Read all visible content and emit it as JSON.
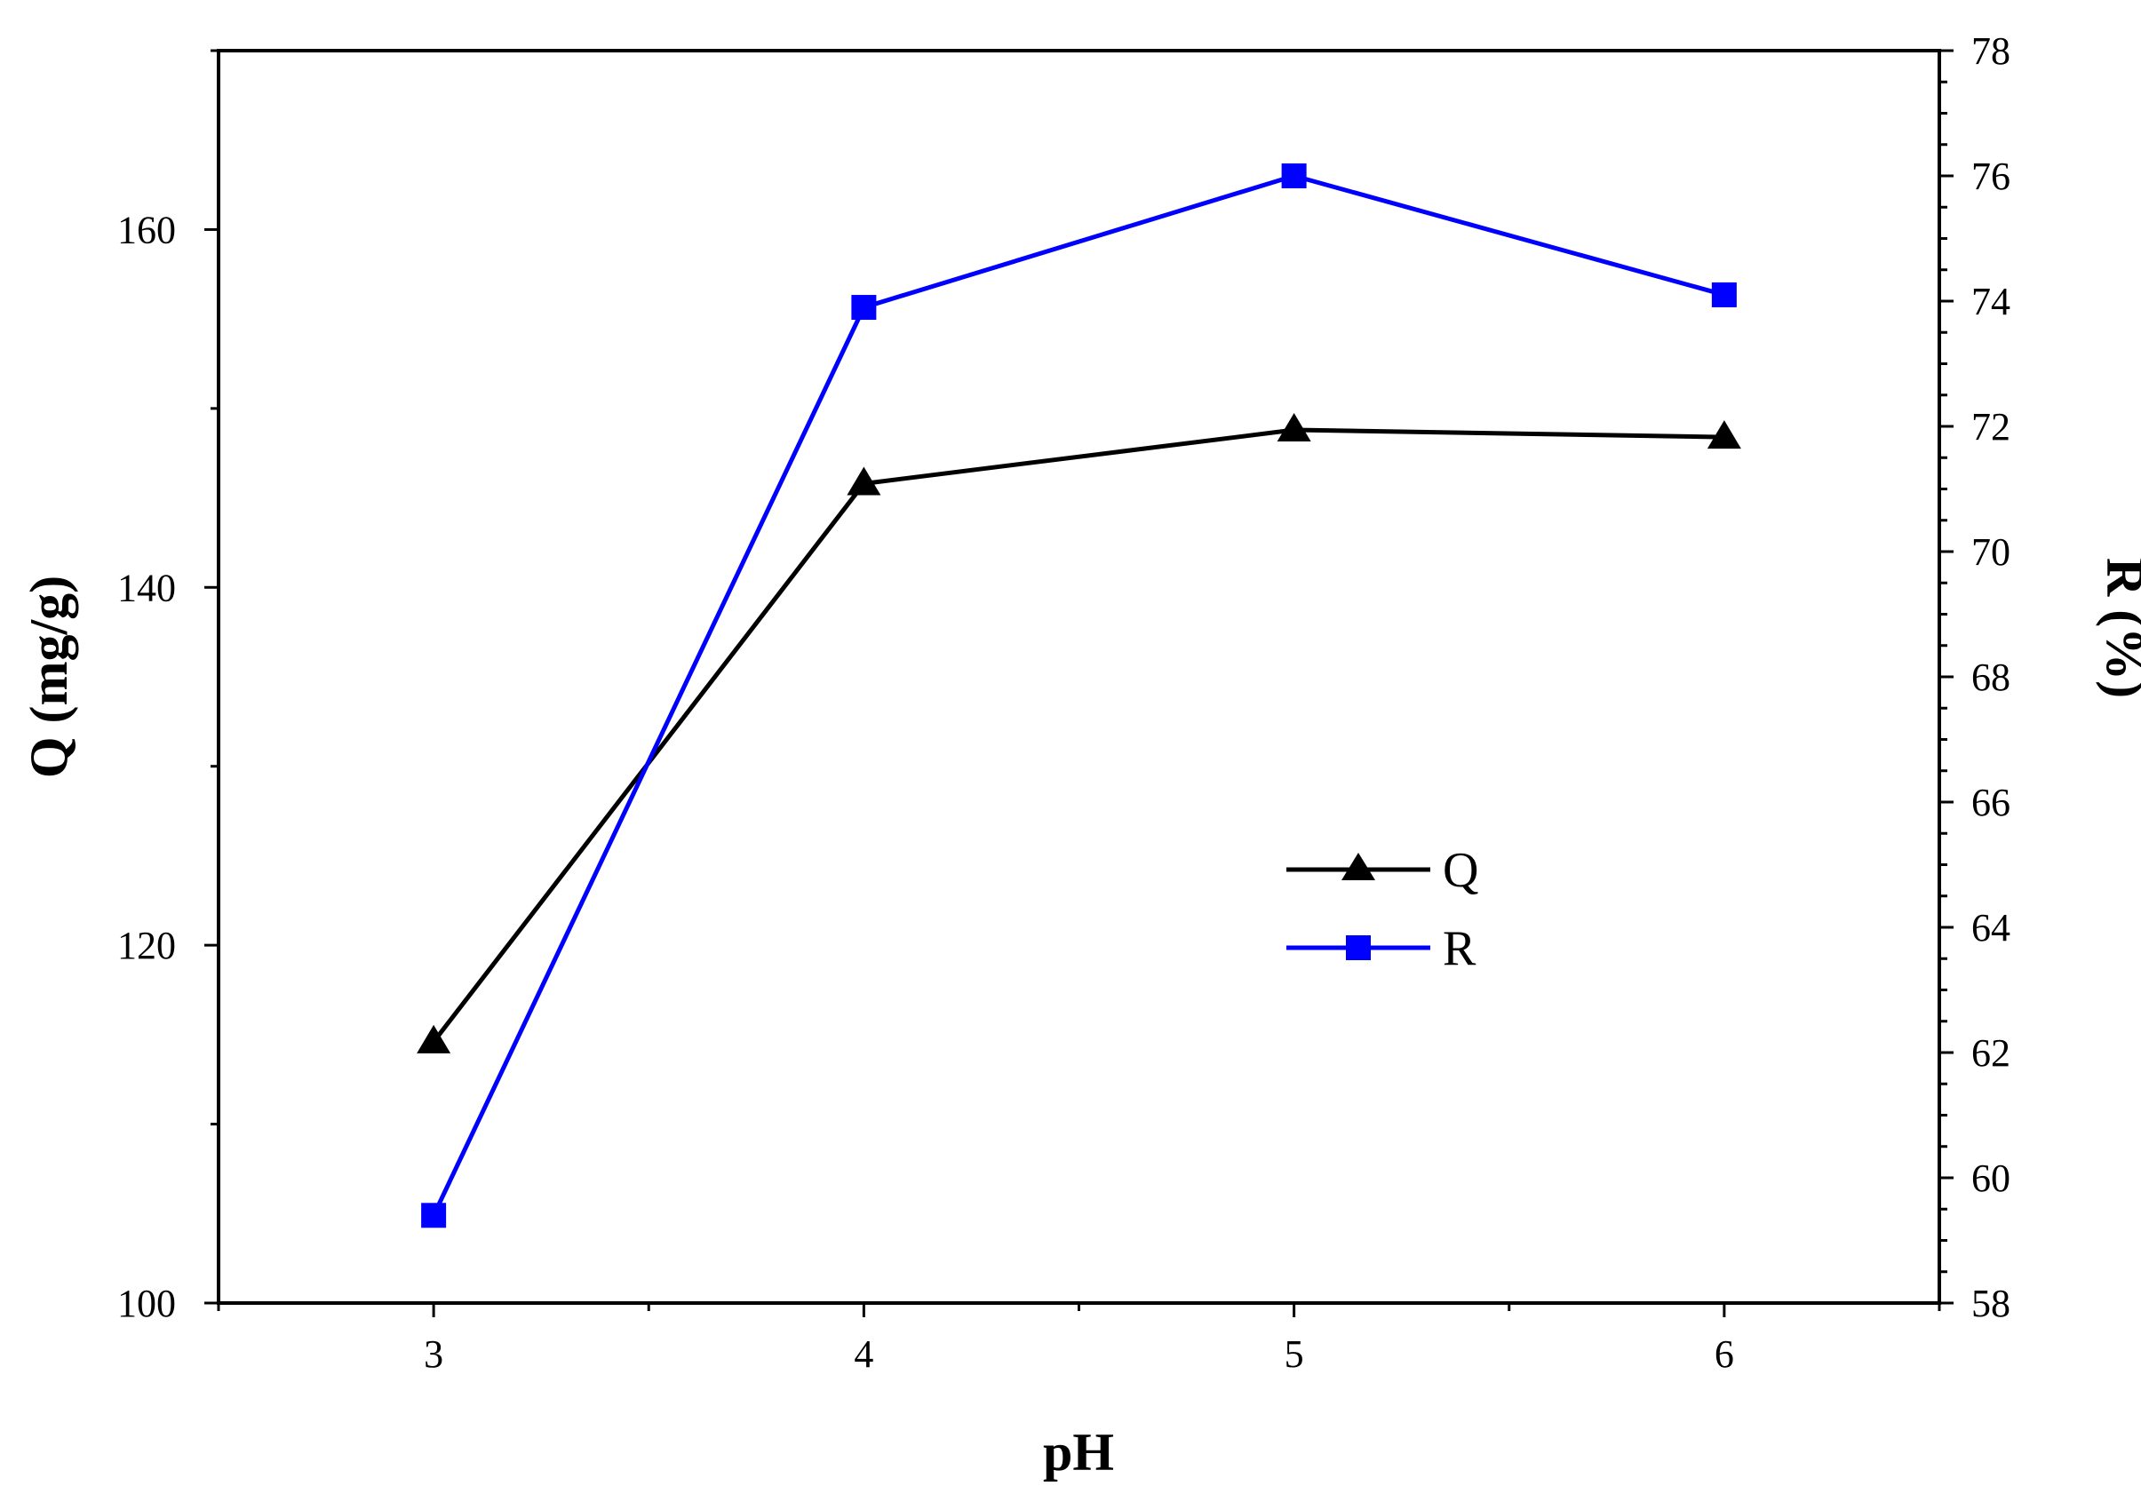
{
  "chart_data": {
    "type": "line",
    "xlabel": "pH",
    "ylabel_left": "Q (mg/g)",
    "ylabel_right": "R (%)",
    "x": [
      3,
      4,
      5,
      6
    ],
    "xlim": [
      2.5,
      6.5
    ],
    "x_ticks": [
      3,
      4,
      5,
      6
    ],
    "ylim_left": [
      100,
      170
    ],
    "y_ticks_left": [
      100,
      120,
      140,
      160
    ],
    "ylim_right": [
      58,
      78
    ],
    "y_ticks_right": [
      58,
      60,
      62,
      64,
      66,
      68,
      70,
      72,
      74,
      76,
      78
    ],
    "grid": false,
    "legend_position": "center-right",
    "series": [
      {
        "name": "Q",
        "axis": "left",
        "marker": "triangle",
        "color": "#000000",
        "values": [
          114.6,
          145.8,
          148.8,
          148.4
        ]
      },
      {
        "name": "R",
        "axis": "right",
        "marker": "square",
        "color": "#0000ff",
        "values": [
          59.4,
          73.9,
          76.0,
          74.1
        ]
      }
    ]
  }
}
